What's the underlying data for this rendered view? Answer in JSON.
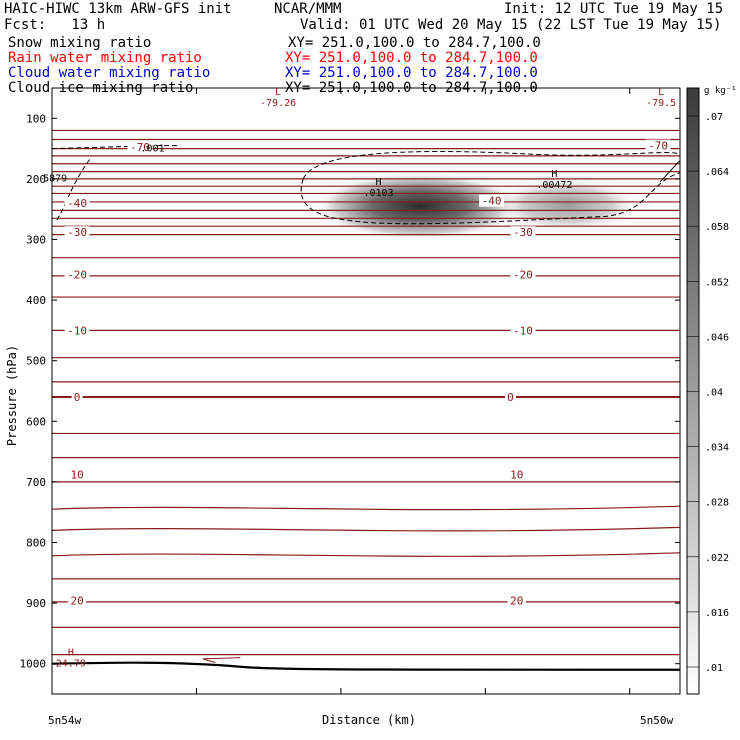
{
  "header": {
    "left_title": "HAIC-HIWC 13km ARW-GFS init",
    "center_title": "NCAR/MMM",
    "init": "Init: 12 UTC Tue 19 May 15",
    "fcst": "Fcst:   13 h",
    "valid": "Valid: 01 UTC Wed 20 May 15 (22 LST Tue 19 May 15)"
  },
  "fields": [
    {
      "name": "Snow mixing ratio",
      "xy": "XY= 251.0,100.0 to 284.7,100.0",
      "color": "#000000"
    },
    {
      "name": "Rain water mixing ratio",
      "xy": "XY= 251.0,100.0 to 284.7,100.0",
      "color": "#ff0000"
    },
    {
      "name": "Cloud water mixing ratio",
      "xy": "XY= 251.0,100.0 to 284.7,100.0",
      "color": "#0000cc"
    },
    {
      "name": "Cloud ice mixing ratio",
      "xy": "XY= 251.0,100.0 to 284.7,100.0",
      "color": "#000000"
    }
  ],
  "colors": {
    "isotherm": "#8b1a1a",
    "terrain": "#000000",
    "shading_dark": "#3c3c3c",
    "frame": "#000000"
  },
  "chart_data": {
    "type": "heatmap",
    "ylabel": "Pressure (hPa)",
    "xlabel": "Distance (km)",
    "x_tick_labels": [
      "5n54w",
      "5n50w"
    ],
    "y_axis": {
      "range": [
        50,
        1050
      ],
      "inverted": true,
      "ticks": [
        100,
        200,
        300,
        400,
        500,
        600,
        700,
        800,
        900,
        1000
      ]
    },
    "colorbar": {
      "unit": "g kg⁻¹",
      "levels": [
        ".01",
        ".016",
        ".022",
        ".028",
        ".034",
        ".04",
        ".046",
        ".052",
        ".058",
        ".064",
        ".07"
      ]
    },
    "isotherm_labels": [
      {
        "value": "-70",
        "x_frac": 0.14,
        "p": 147
      },
      {
        "value": "-70",
        "x_frac": 0.965,
        "p": 145
      },
      {
        "value": "-40",
        "x_frac": 0.04,
        "p": 240
      },
      {
        "value": "-40",
        "x_frac": 0.7,
        "p": 236
      },
      {
        "value": "-30",
        "x_frac": 0.04,
        "p": 288
      },
      {
        "value": "-30",
        "x_frac": 0.75,
        "p": 288
      },
      {
        "value": "-20",
        "x_frac": 0.04,
        "p": 358
      },
      {
        "value": "-20",
        "x_frac": 0.75,
        "p": 358
      },
      {
        "value": "-10",
        "x_frac": 0.04,
        "p": 450
      },
      {
        "value": "-10",
        "x_frac": 0.75,
        "p": 450
      },
      {
        "value": "0",
        "x_frac": 0.04,
        "p": 560
      },
      {
        "value": "0",
        "x_frac": 0.73,
        "p": 560
      },
      {
        "value": "10",
        "x_frac": 0.04,
        "p": 688
      },
      {
        "value": "10",
        "x_frac": 0.74,
        "p": 688
      },
      {
        "value": "20",
        "x_frac": 0.04,
        "p": 896
      },
      {
        "value": "20",
        "x_frac": 0.74,
        "p": 896
      }
    ],
    "extrema": [
      {
        "type": "L",
        "value": "-79.26",
        "x_frac": 0.36,
        "p": 65
      },
      {
        "type": "L",
        "value": "-79.5",
        "x_frac": 0.97,
        "p": 65
      },
      {
        "type": "H",
        "value": "24.79",
        "x_frac": 0.03,
        "p": 990
      },
      {
        "type": "H",
        "value": ".0103",
        "x_frac": 0.52,
        "p": 213
      },
      {
        "type": "H",
        "value": ".00472",
        "x_frac": 0.8,
        "p": 200
      }
    ],
    "contour_labels": [
      {
        "value": ".001",
        "x_frac": 0.16,
        "p": 148
      },
      {
        "value": "5879",
        "x_frac": 0.005,
        "p": 198
      }
    ],
    "hydrometeor_max": [
      {
        "value": 0.0103,
        "p": 245
      },
      {
        "value": 0.00472,
        "p": 245
      }
    ]
  }
}
